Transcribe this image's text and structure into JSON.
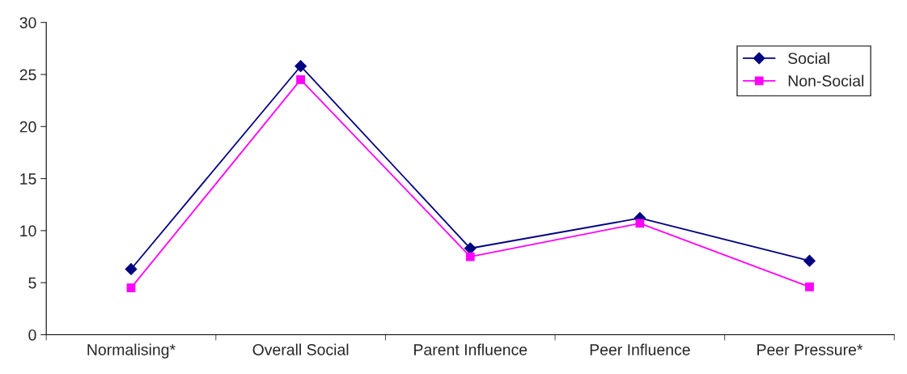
{
  "chart_data": {
    "type": "line",
    "categories": [
      "Normalising*",
      "Overall Social",
      "Parent Influence",
      "Peer Influence",
      "Peer Pressure*"
    ],
    "series": [
      {
        "name": "Social",
        "color": "#000080",
        "marker": "diamond",
        "values": [
          6.3,
          25.8,
          8.3,
          11.2,
          7.1
        ]
      },
      {
        "name": "Non-Social",
        "color": "#ff00ff",
        "marker": "square",
        "values": [
          4.5,
          24.5,
          7.5,
          10.7,
          4.6
        ]
      }
    ],
    "ylim": [
      0,
      30
    ],
    "yticks": [
      0,
      5,
      10,
      15,
      20,
      25,
      30
    ],
    "grid": false,
    "legend": "top right",
    "line_style": "solid"
  }
}
